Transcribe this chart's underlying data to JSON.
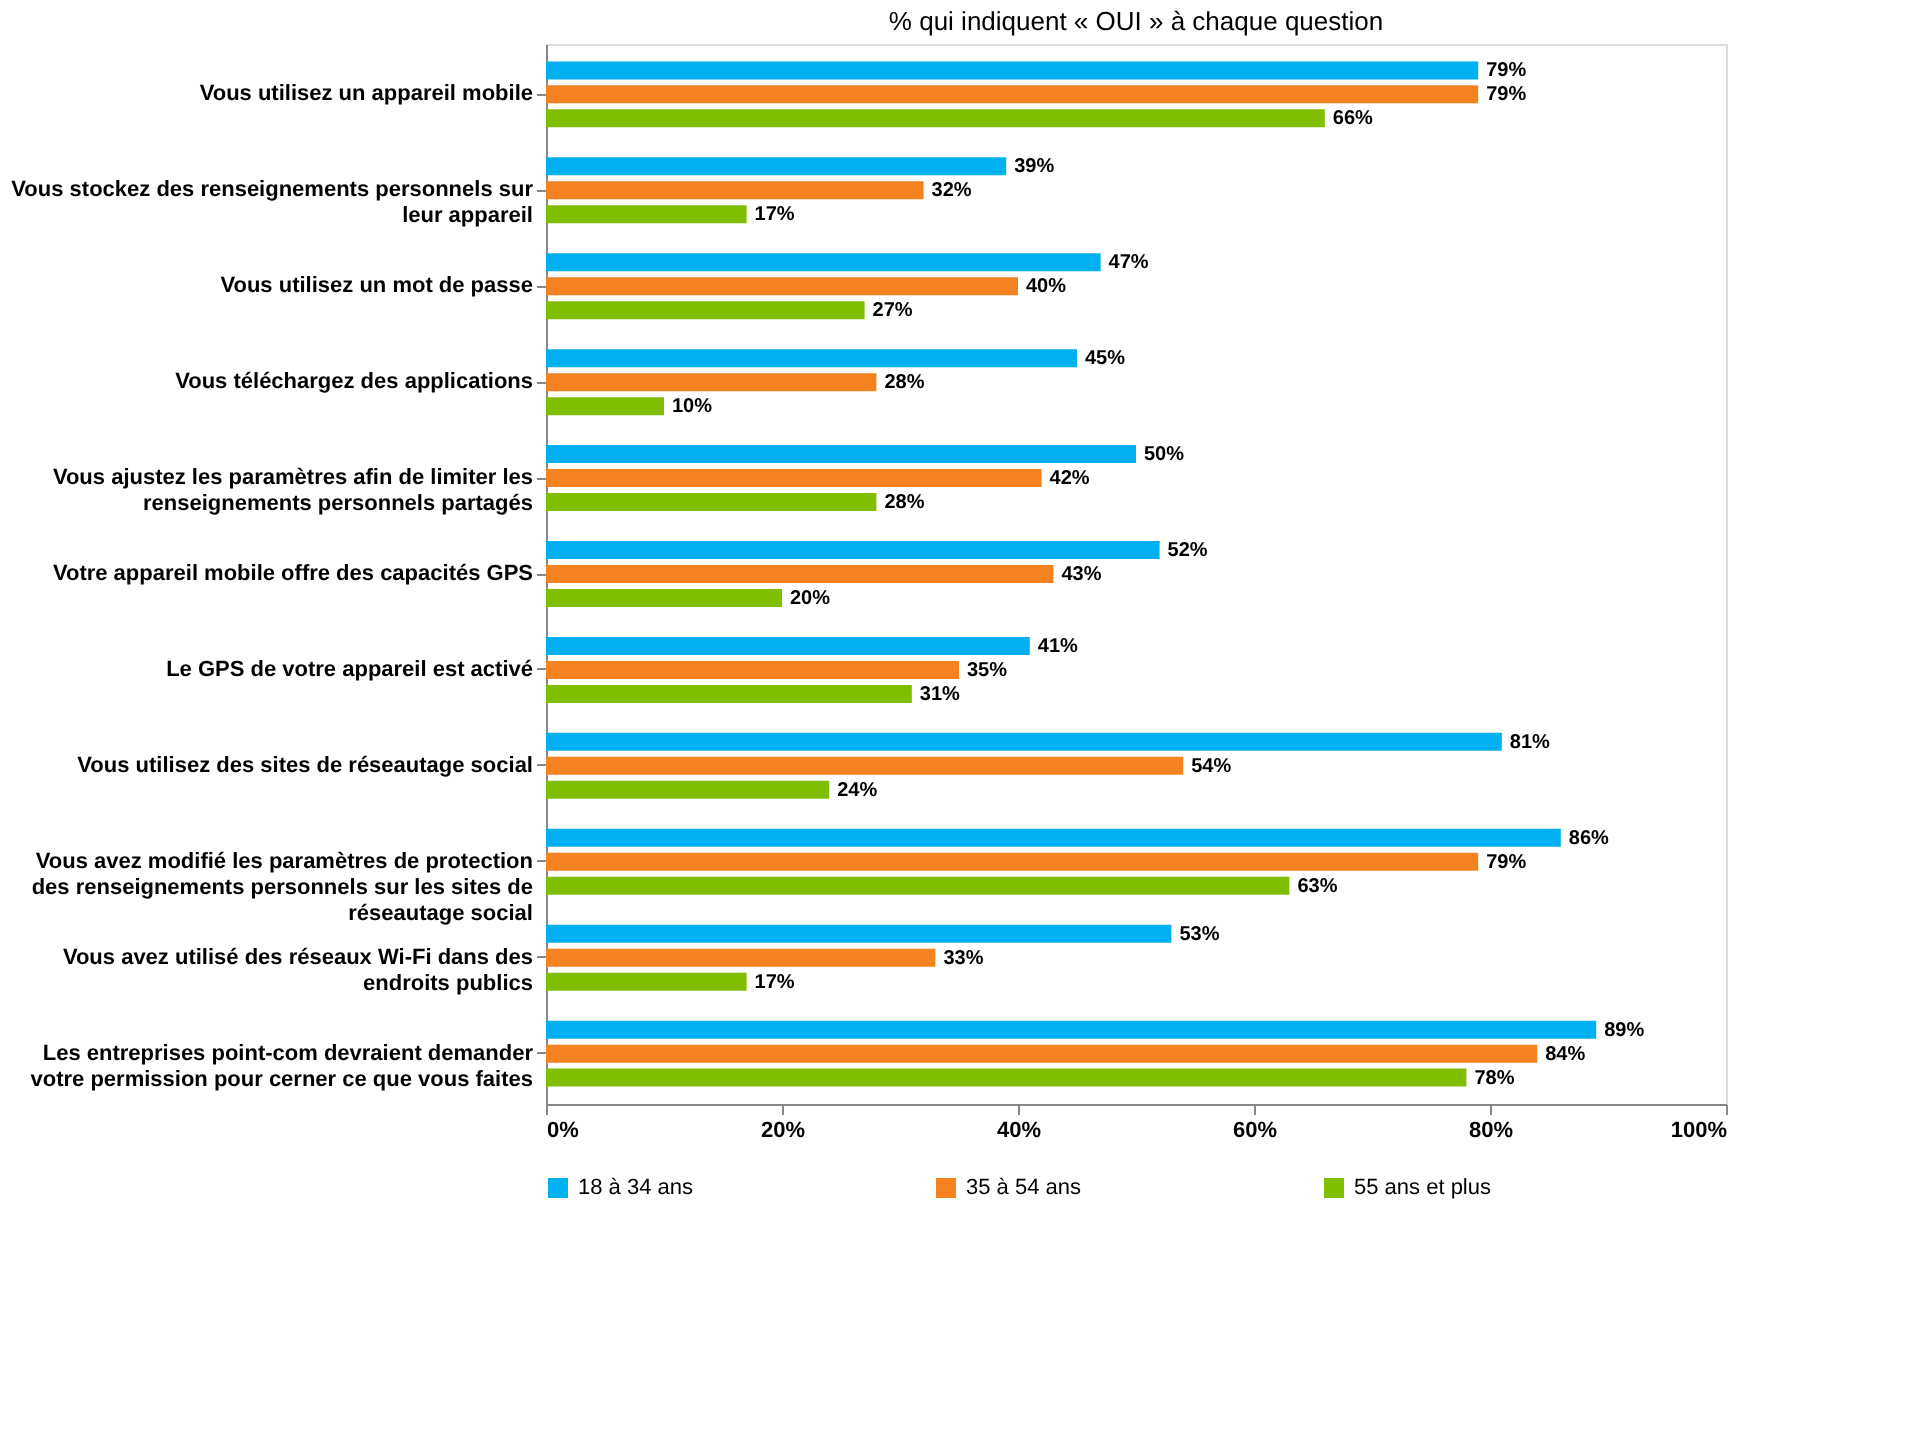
{
  "chart_data": {
    "type": "bar",
    "orientation": "horizontal",
    "title": "% qui indiquent « OUI » à chaque question",
    "categories": [
      "Vous utilisez un appareil mobile",
      "Vous stockez des renseignements personnels sur leur appareil",
      "Vous utilisez un mot de passe",
      "Vous téléchargez des applications",
      "Vous ajustez les paramètres afin de limiter les renseignements personnels partagés",
      "Votre appareil mobile offre des capacités GPS",
      "Le GPS de votre appareil est activé",
      "Vous utilisez des sites de réseautage social",
      "Vous avez modifié les paramètres de protection des renseignements personnels sur les sites de réseautage social",
      "Vous avez utilisé des réseaux Wi-Fi dans des endroits publics",
      "Les entreprises point-com devraient demander votre permission pour cerner ce que vous faites"
    ],
    "series": [
      {
        "name": "18 à 34 ans",
        "color": "#00b0f0",
        "values": [
          79,
          39,
          47,
          45,
          50,
          52,
          41,
          81,
          86,
          53,
          89
        ],
        "value_labels": [
          "79%",
          "39%",
          "47%",
          "45%",
          "50%",
          "52%",
          "41%",
          "81%",
          "86%",
          "53%",
          "89%"
        ]
      },
      {
        "name": "35 à 54 ans",
        "color": "#f58220",
        "values": [
          79,
          32,
          40,
          28,
          42,
          43,
          35,
          54,
          79,
          33,
          84
        ],
        "value_labels": [
          "79%",
          "32%",
          "40%",
          "28%",
          "42%",
          "43%",
          "35%",
          "54%",
          "79%",
          "33%",
          "84%"
        ]
      },
      {
        "name": "55 ans et plus",
        "color": "#7fbf00",
        "values": [
          66,
          17,
          27,
          10,
          28,
          20,
          31,
          24,
          63,
          17,
          78
        ],
        "value_labels": [
          "66%",
          "17%",
          "27%",
          "10%",
          "28%",
          "20%",
          "31%",
          "24%",
          "63%",
          "17%",
          "78%"
        ]
      }
    ],
    "xlim": [
      0,
      100
    ],
    "xticks": [
      {
        "value": 0,
        "label": "0%"
      },
      {
        "value": 20,
        "label": "20%"
      },
      {
        "value": 40,
        "label": "40%"
      },
      {
        "value": 60,
        "label": "60%"
      },
      {
        "value": 80,
        "label": "80%"
      },
      {
        "value": 100,
        "label": "100%"
      }
    ],
    "grid": false,
    "legend": "bottom"
  }
}
